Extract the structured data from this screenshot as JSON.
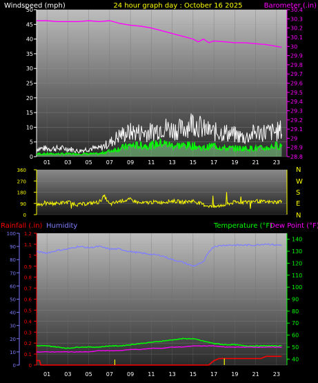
{
  "colors": {
    "background": "#000000",
    "title": "#ffff00",
    "windspeed_label": "#ffffff",
    "barometer": "#ff00ff",
    "wind_gust": "#ffffff",
    "wind_avg": "#00ff00",
    "wind_dir": "#ffff00",
    "rainfall": "#ff0000",
    "humidity": "#7f7fff",
    "temperature": "#00ff00",
    "dewpoint": "#ff00ff",
    "rain_rate": "#ffff00",
    "frame": "#808080"
  },
  "header": {
    "windspeed_label": "Windspeed (mph)",
    "title": "24 hour graph day : October 16 2025",
    "barometer_label": "Barometer (.in)"
  },
  "bottom_header": {
    "rainfall_label": "Rainfall (.in)",
    "humidity_label": "Humidity",
    "temperature_label": "Temperature (°F)",
    "dewpoint_label": "Dew Point (°F)"
  },
  "x_ticks": [
    "01",
    "03",
    "05",
    "07",
    "09",
    "11",
    "13",
    "15",
    "17",
    "19",
    "21",
    "23"
  ],
  "chart_data": [
    {
      "type": "line",
      "title": "24 hour graph day : October 16 2025",
      "x_range": [
        0,
        24
      ],
      "left_axis": {
        "label": "Windspeed (mph)",
        "range": [
          0,
          50
        ],
        "ticks": [
          0,
          5,
          10,
          15,
          20,
          25,
          30,
          35,
          40,
          45,
          50
        ]
      },
      "right_axis": {
        "label": "Barometer (.in)",
        "range": [
          28.8,
          30.4
        ],
        "ticks": [
          "28.8",
          "28.9",
          "29",
          "29.1",
          "29.2",
          "29.3",
          "29.4",
          "29.5",
          "29.6",
          "29.7",
          "29.8",
          "29.9",
          "30",
          "30.1",
          "30.2",
          "30.3",
          "30.4"
        ]
      },
      "series": [
        {
          "name": "Barometer (.in)",
          "axis": "right",
          "x": [
            0,
            1,
            2,
            3,
            4,
            5,
            6,
            7,
            8,
            9,
            10,
            11,
            12,
            13,
            14,
            15,
            15.5,
            16,
            16.5,
            17,
            18,
            19,
            20,
            21,
            22,
            23,
            23.5
          ],
          "y": [
            30.28,
            30.28,
            30.27,
            30.27,
            30.27,
            30.28,
            30.27,
            30.28,
            30.25,
            30.23,
            30.22,
            30.2,
            30.17,
            30.14,
            30.11,
            30.08,
            30.05,
            30.08,
            30.04,
            30.06,
            30.05,
            30.04,
            30.04,
            30.03,
            30.02,
            30.0,
            29.99
          ]
        },
        {
          "axis": "left",
          "x": [
            0,
            1,
            2,
            3,
            4,
            5,
            6,
            7,
            8,
            9,
            10,
            11,
            12,
            13,
            14,
            15,
            16,
            17,
            18,
            19,
            20,
            21,
            22,
            23,
            23.5
          ],
          "y": [
            3,
            3,
            3,
            3,
            2,
            3,
            3,
            5,
            8,
            9,
            9,
            9,
            11,
            10,
            10,
            13,
            10,
            9,
            9,
            8,
            7,
            9,
            9,
            9,
            10
          ]
        },
        {
          "axis": "left",
          "x": [
            0,
            1,
            2,
            3,
            4,
            5,
            6,
            7,
            8,
            9,
            10,
            11,
            12,
            13,
            14,
            15,
            16,
            17,
            18,
            19,
            20,
            21,
            22,
            23,
            23.5
          ],
          "y": [
            1,
            1,
            1,
            1,
            1,
            1,
            1,
            2,
            3,
            4,
            4,
            4,
            5,
            4,
            4,
            4,
            3,
            4,
            3,
            3,
            3,
            3,
            3,
            4,
            4
          ]
        }
      ]
    },
    {
      "type": "line",
      "x_range": [
        0,
        24
      ],
      "left_axis": {
        "range": [
          0,
          360
        ],
        "ticks": [
          0,
          90,
          180,
          270,
          360
        ]
      },
      "right_axis": {
        "ticks": [
          "N",
          "W",
          "S",
          "E",
          "N"
        ]
      },
      "series": [
        {
          "axis": "left",
          "x": [
            0,
            1,
            2,
            3,
            4,
            5,
            6,
            6.5,
            7,
            8,
            9,
            10,
            11,
            12,
            13,
            14,
            15,
            16,
            17,
            18,
            19,
            20,
            21,
            22,
            23,
            23.5
          ],
          "y": [
            80,
            90,
            90,
            100,
            80,
            90,
            100,
            150,
            80,
            110,
            120,
            90,
            100,
            100,
            110,
            100,
            110,
            80,
            60,
            80,
            100,
            100,
            110,
            100,
            100,
            110
          ]
        }
      ]
    },
    {
      "type": "line",
      "x_range": [
        0,
        24
      ],
      "axes": [
        {
          "label": "Rainfall (.in)",
          "range": [
            0,
            1.2
          ],
          "ticks": [
            "0",
            "0.1",
            "0.2",
            "0.3",
            "0.4",
            "0.5",
            "0.6",
            "0.7",
            "0.8",
            "0.9",
            "1",
            "1.1",
            "1.2"
          ]
        },
        {
          "label": "Humidity",
          "range": [
            0,
            100
          ],
          "ticks": [
            0,
            10,
            20,
            30,
            40,
            50,
            60,
            70,
            80,
            90,
            100
          ]
        },
        {
          "label": "Temperature (°F)",
          "range": [
            35,
            145
          ],
          "ticks": [
            40,
            50,
            60,
            70,
            80,
            90,
            100,
            110,
            120,
            130,
            140
          ]
        }
      ],
      "series": [
        {
          "name": "Humidity",
          "axis": "Humidity",
          "x": [
            0,
            1,
            2,
            3,
            4,
            5,
            6,
            7,
            8,
            9,
            10,
            11,
            12,
            13,
            14,
            15,
            16,
            16.5,
            17,
            18,
            19,
            20,
            21,
            22,
            23,
            23.5
          ],
          "y": [
            86,
            85,
            87,
            88,
            90,
            89,
            90,
            88,
            88,
            86,
            85,
            84,
            83,
            80,
            78,
            75,
            78,
            86,
            90,
            91,
            91,
            91,
            91,
            92,
            91,
            91
          ]
        },
        {
          "name": "Temperature (°F)",
          "axis": "Temperature (°F)",
          "x": [
            0,
            1,
            2,
            3,
            4,
            5,
            6,
            7,
            8,
            9,
            10,
            11,
            12,
            13,
            14,
            15,
            16,
            17,
            18,
            19,
            20,
            21,
            22,
            23,
            23.5
          ],
          "y": [
            51,
            51,
            50,
            49,
            50,
            50,
            50,
            51,
            51,
            52,
            53,
            54,
            55,
            56,
            57,
            57,
            55,
            53,
            52,
            52,
            51,
            51,
            51,
            51,
            51
          ]
        },
        {
          "name": "Dew Point (°F)",
          "axis": "Temperature (°F)",
          "x": [
            0,
            1,
            2,
            3,
            4,
            5,
            6,
            7,
            8,
            9,
            10,
            11,
            12,
            13,
            14,
            15,
            16,
            17,
            18,
            19,
            20,
            21,
            22,
            23,
            23.5
          ],
          "y": [
            46,
            46,
            46,
            46,
            46,
            46,
            47,
            47,
            47,
            48,
            48,
            49,
            49,
            50,
            50,
            51,
            51,
            51,
            50,
            50,
            50,
            50,
            50,
            50,
            50
          ]
        },
        {
          "name": "Rainfall (.in)",
          "axis": "Rainfall (.in)",
          "x": [
            0,
            0.3,
            0.4,
            16.5,
            17,
            17.5,
            18,
            21.5,
            22,
            23.5
          ],
          "y": [
            0.04,
            0.04,
            0,
            0,
            0.04,
            0.06,
            0.06,
            0.06,
            0.08,
            0.08
          ]
        },
        {
          "axis": "Rainfall (.in)",
          "spikes": [
            {
              "x": 7.5,
              "y": 0.05
            },
            {
              "x": 18,
              "y": 0.06
            }
          ]
        }
      ]
    }
  ]
}
